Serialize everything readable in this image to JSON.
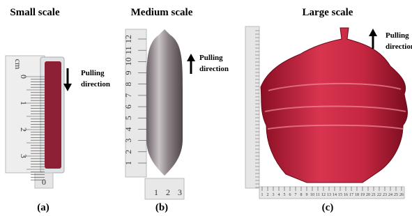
{
  "panels": [
    {
      "title": "Small scale",
      "label": "(a)",
      "annotation": [
        "Pulling",
        "direction"
      ],
      "ruler": {
        "unit": "cm",
        "labels": [
          0,
          1,
          2,
          3
        ],
        "end_label": 0
      }
    },
    {
      "title": "Medium scale",
      "label": "(b)",
      "annotation": [
        "Pulling",
        "direction"
      ],
      "ruler": {
        "labels": [
          1,
          2,
          3,
          4,
          5,
          6,
          7,
          8,
          9,
          10,
          11,
          12
        ],
        "bottom_labels": [
          1,
          2,
          3
        ]
      }
    },
    {
      "title": "Large scale",
      "label": "(c)",
      "annotation": [
        "Pulling",
        "direction"
      ],
      "ruler": {
        "labels": [
          1,
          2,
          3,
          4,
          5,
          6,
          7,
          8,
          9,
          10,
          11,
          12,
          13,
          14,
          15,
          16,
          17,
          18,
          19,
          20,
          21,
          22,
          23,
          24,
          25,
          26
        ]
      }
    }
  ]
}
